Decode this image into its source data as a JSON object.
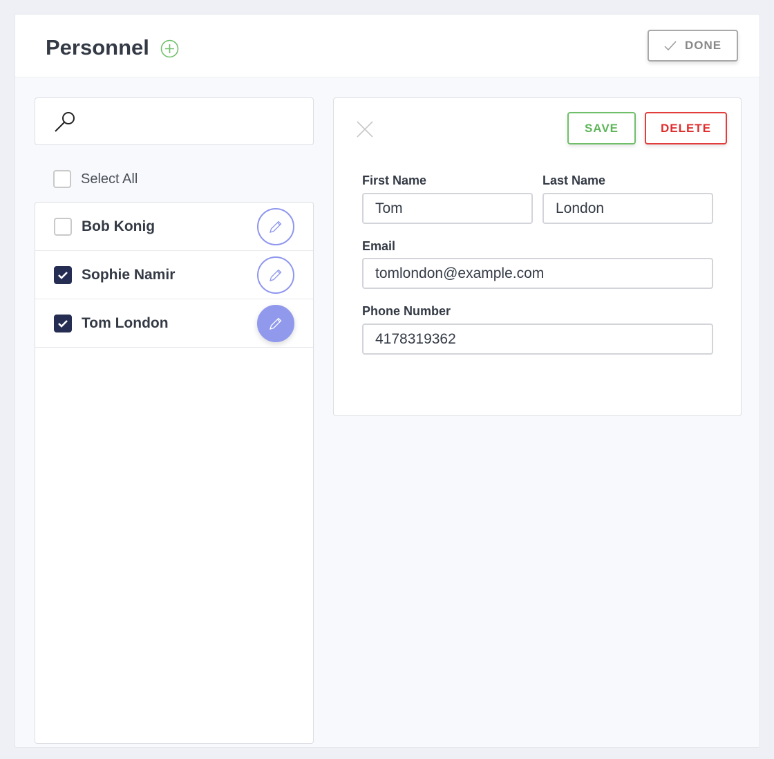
{
  "header": {
    "title": "Personnel",
    "add_icon": "plus-circle-icon",
    "done_label": "DONE",
    "done_icon": "check-icon"
  },
  "search": {
    "icon": "search-icon",
    "value": ""
  },
  "select_all": {
    "label": "Select All",
    "checked": false
  },
  "people": [
    {
      "name": "Bob Konig",
      "checked": false,
      "active": false
    },
    {
      "name": "Sophie Namir",
      "checked": true,
      "active": false
    },
    {
      "name": "Tom London",
      "checked": true,
      "active": true
    }
  ],
  "detail": {
    "save_label": "SAVE",
    "delete_label": "DELETE",
    "first_name_label": "First Name",
    "first_name": "Tom",
    "last_name_label": "Last Name",
    "last_name": "London",
    "email_label": "Email",
    "email": "tomlondon@example.com",
    "phone_label": "Phone Number",
    "phone": "4178319362"
  },
  "colors": {
    "accent": "#9099ec",
    "save": "#5fb55a",
    "delete": "#e02c2c",
    "checkbox": "#252e52"
  }
}
